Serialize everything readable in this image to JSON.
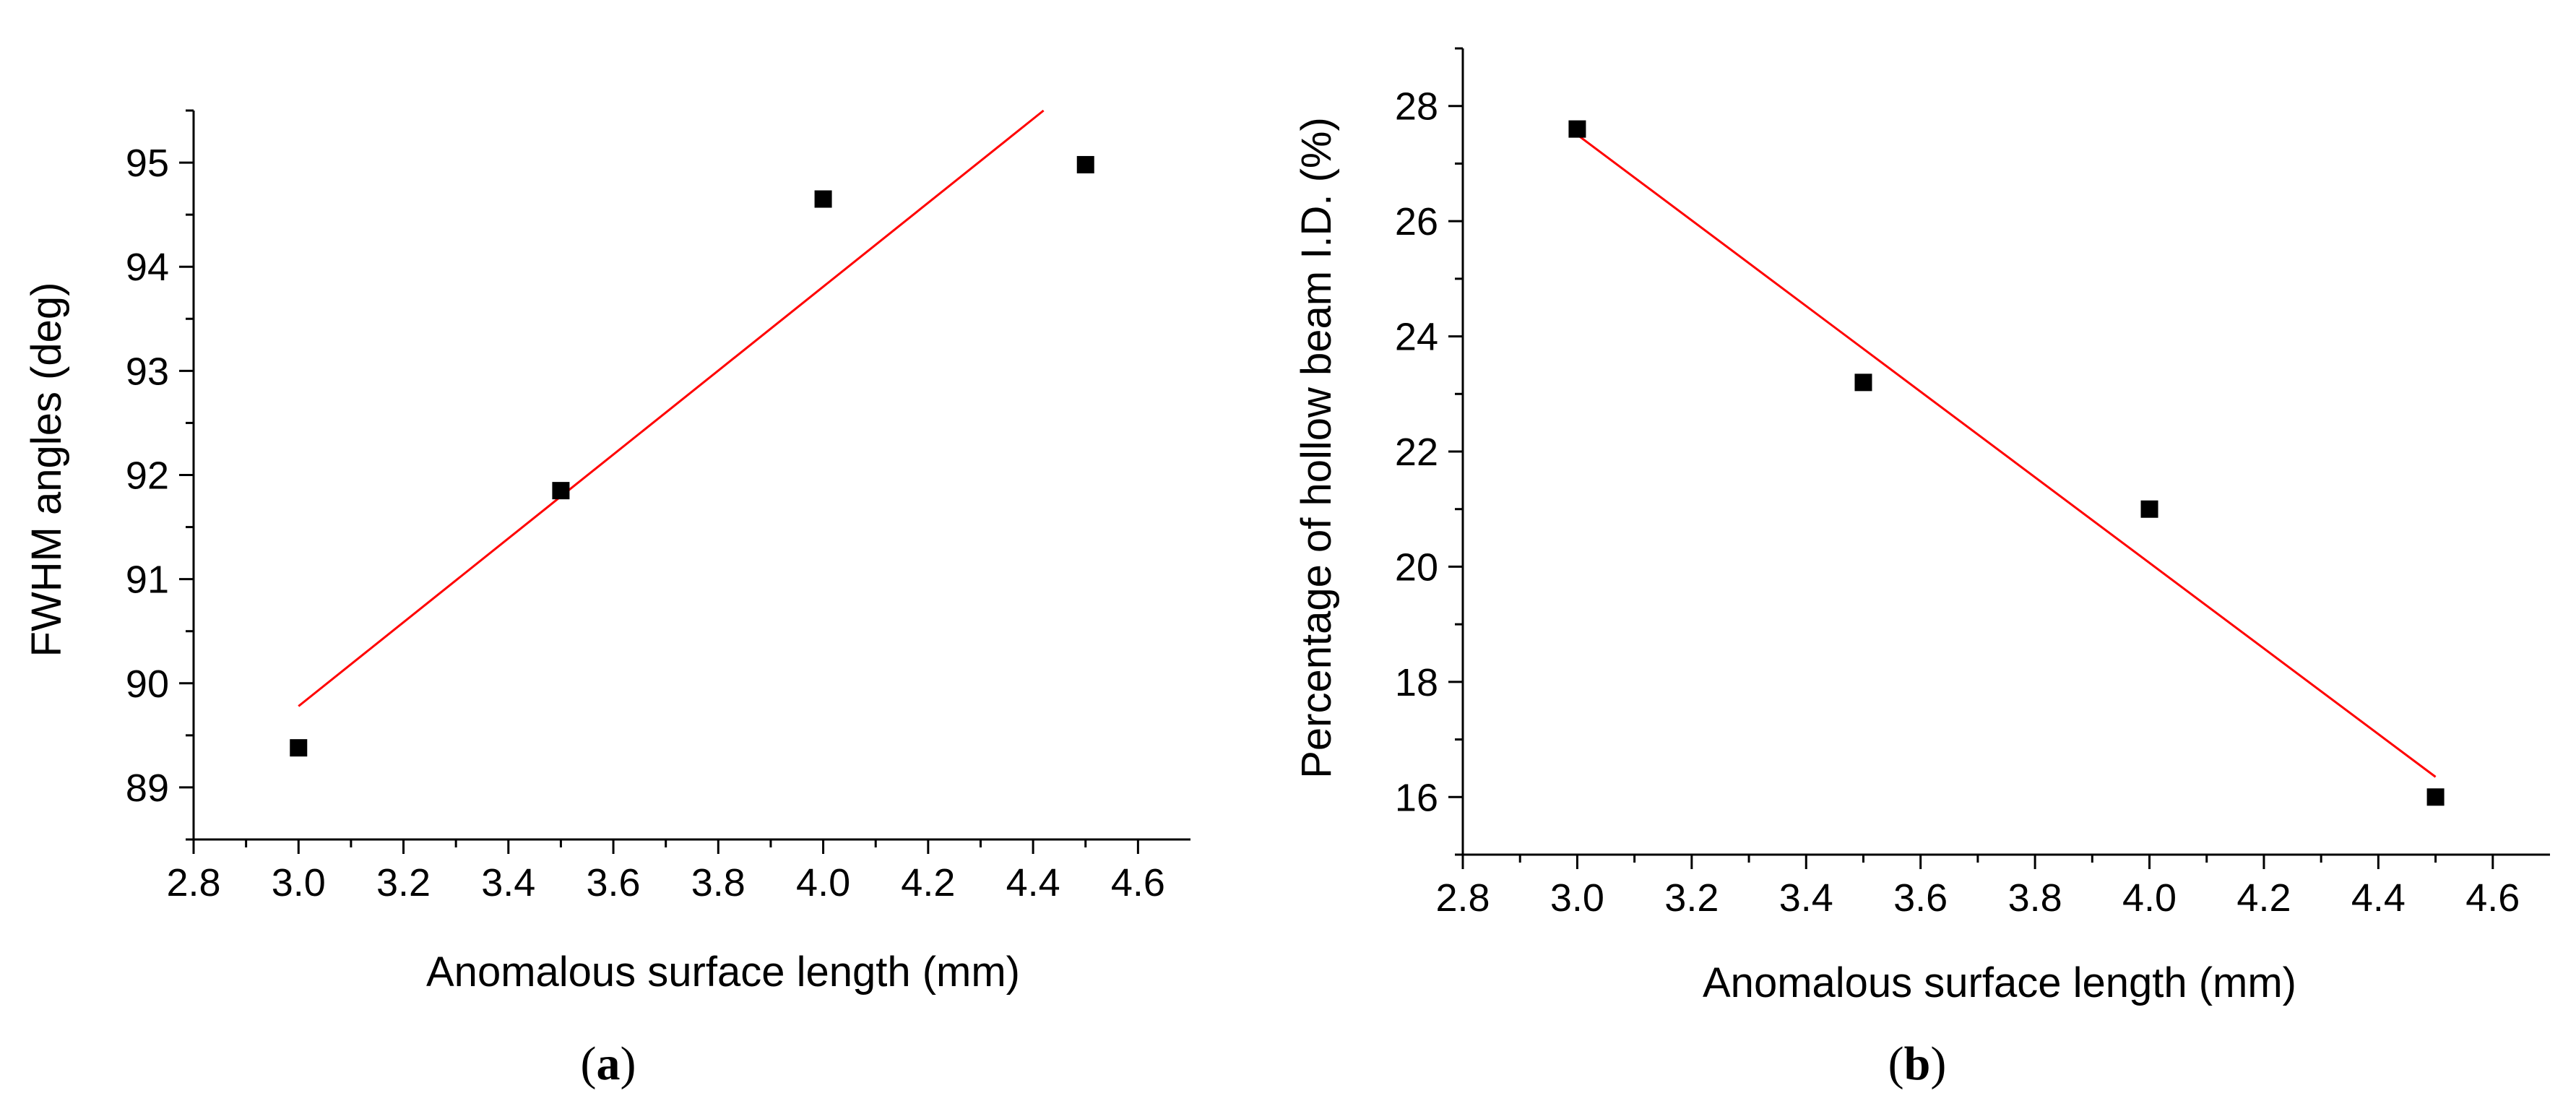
{
  "colors": {
    "fit_line": "#ff0000",
    "marker": "#000000",
    "axis": "#000000",
    "background": "#ffffff"
  },
  "chart_data": [
    {
      "id": "a",
      "type": "scatter",
      "panel_label": {
        "open": "(",
        "letter": "a",
        "close": ")"
      },
      "xlabel": "Anomalous surface length (mm)",
      "ylabel": "FWHM angles (deg)",
      "xlim": [
        2.8,
        4.7
      ],
      "ylim": [
        88.5,
        95.5
      ],
      "xticks": [
        "2.8",
        "3.0",
        "3.2",
        "3.4",
        "3.6",
        "3.8",
        "4.0",
        "4.2",
        "4.4",
        "4.6"
      ],
      "yticks": [
        "89",
        "90",
        "91",
        "92",
        "93",
        "94",
        "95"
      ],
      "series": [
        {
          "name": "data",
          "marker": "square",
          "x": [
            3.0,
            3.5,
            4.0,
            4.5
          ],
          "y": [
            89.38,
            91.85,
            94.65,
            94.98
          ]
        }
      ],
      "fit": {
        "x": [
          3.0,
          4.42
        ],
        "y": [
          89.78,
          95.5
        ]
      }
    },
    {
      "id": "b",
      "type": "scatter",
      "panel_label": {
        "open": "(",
        "letter": "b",
        "close": ")"
      },
      "xlabel": "Anomalous surface length (mm)",
      "ylabel": "Percentage of hollow beam I.D. (%)",
      "xlim": [
        2.8,
        4.7
      ],
      "ylim": [
        15.0,
        29.0
      ],
      "xticks": [
        "2.8",
        "3.0",
        "3.2",
        "3.4",
        "3.6",
        "3.8",
        "4.0",
        "4.2",
        "4.4",
        "4.6"
      ],
      "yticks": [
        "16",
        "18",
        "20",
        "22",
        "24",
        "26",
        "28"
      ],
      "series": [
        {
          "name": "data",
          "marker": "square",
          "x": [
            3.0,
            3.5,
            4.0,
            4.5
          ],
          "y": [
            27.6,
            23.2,
            21.0,
            16.0
          ]
        }
      ],
      "fit": {
        "x": [
          3.0,
          4.5
        ],
        "y": [
          27.5,
          16.35
        ]
      }
    }
  ]
}
